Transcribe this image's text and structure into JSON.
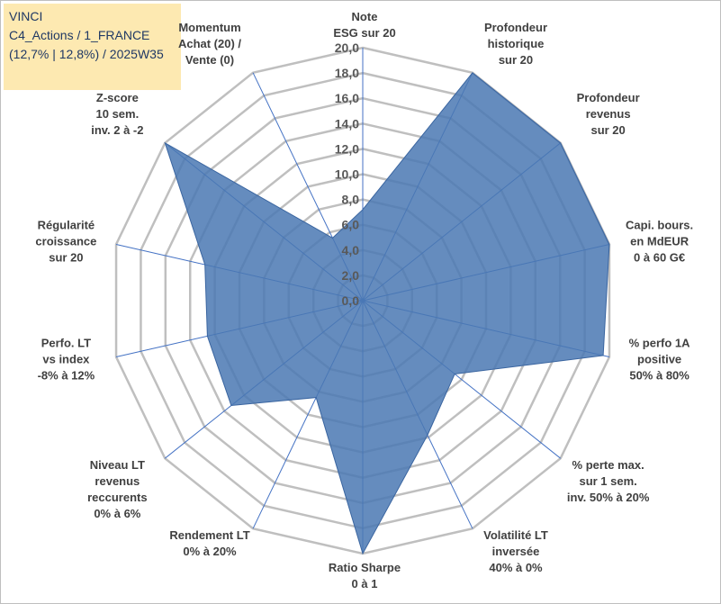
{
  "title_box": {
    "line1": "VINCI",
    "line2": "C4_Actions / 1_FRANCE",
    "line3": "(12,7% | 12,8%) / 2025W35"
  },
  "colors": {
    "grid": "#bfbfbf",
    "spoke": "#4472c4",
    "fill": "#4a78b3",
    "stroke": "#3a65a0"
  },
  "chart_data": {
    "type": "radar",
    "rlim": [
      0,
      20
    ],
    "tick_labels": [
      "0,0",
      "2,0",
      "4,0",
      "6,0",
      "8,0",
      "10,0",
      "12,0",
      "14,0",
      "16,0",
      "18,0",
      "20,0"
    ],
    "grid": true,
    "axes": [
      {
        "label": [
          "Note",
          "ESG sur 20"
        ],
        "value": 7.2
      },
      {
        "label": [
          "Profondeur",
          "historique",
          "sur 20"
        ],
        "value": 20
      },
      {
        "label": [
          "Profondeur",
          "revenus",
          "sur 20"
        ],
        "value": 20
      },
      {
        "label": [
          "Capi. bours.",
          "en MdEUR",
          "0 à 60 G€"
        ],
        "value": 20
      },
      {
        "label": [
          "% perfo 1A",
          "positive",
          "50% à 80%"
        ],
        "value": 19.5
      },
      {
        "label": [
          "% perte max.",
          "sur 1 sem.",
          "inv. 50% à 20%"
        ],
        "value": 9.3
      },
      {
        "label": [
          "Volatilité LT",
          "inversée",
          "40% à 0%"
        ],
        "value": 11.8
      },
      {
        "label": [
          "Ratio Sharpe",
          "0 à 1"
        ],
        "value": 20
      },
      {
        "label": [
          "Rendement LT",
          "0% à 20%"
        ],
        "value": 8.5
      },
      {
        "label": [
          "Niveau LT",
          "revenus",
          "reccurents",
          "0% à 6%"
        ],
        "value": 13.3
      },
      {
        "label": [
          "Perfo. LT",
          "vs index",
          "-8% à 12%"
        ],
        "value": 12.6
      },
      {
        "label": [
          "Régularité",
          "croissance",
          "sur 20"
        ],
        "value": 12.8
      },
      {
        "label": [
          "Z-score",
          "10 sem.",
          "inv. 2 à -2"
        ],
        "value": 20
      },
      {
        "label": [
          "Momentum",
          "Achat (20) /",
          "Vente (0)"
        ],
        "value": 5.5
      }
    ]
  }
}
